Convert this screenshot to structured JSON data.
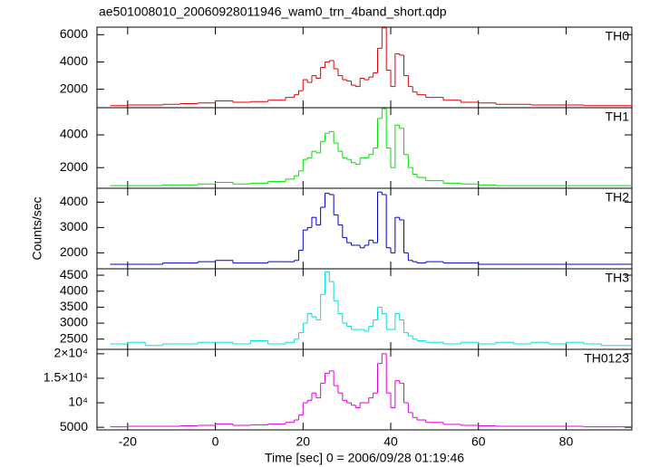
{
  "chart_data": [
    {
      "type": "line",
      "title": "ae501008010_20060928011946_wam0_trn_4band_short.qdp",
      "x": [
        -24,
        -20,
        -16,
        -12,
        -8,
        -4,
        0,
        4,
        8,
        12,
        16,
        18,
        19,
        20,
        21,
        22,
        23,
        24,
        25,
        26,
        27,
        28,
        29,
        30,
        31,
        32,
        33,
        34,
        35,
        36,
        37,
        38,
        39,
        40,
        41,
        42,
        43,
        44,
        45,
        46,
        48,
        52,
        56,
        60,
        64,
        68,
        72,
        76,
        80,
        84,
        88,
        92
      ],
      "series": [
        {
          "name": "TH0",
          "color": "#e00000",
          "values": [
            800,
            850,
            850,
            900,
            950,
            1000,
            1150,
            1050,
            1100,
            1200,
            1400,
            1600,
            1900,
            2700,
            2500,
            3000,
            2800,
            3600,
            4000,
            4100,
            3500,
            3000,
            2700,
            2600,
            2300,
            2200,
            2800,
            2700,
            2900,
            3200,
            5000,
            6500,
            3400,
            2200,
            4600,
            4500,
            3000,
            2200,
            1800,
            1600,
            1400,
            1200,
            1050,
            1000,
            900,
            900,
            850,
            850,
            850,
            800,
            800,
            800
          ]
        }
      ],
      "xlim": [
        -27,
        95
      ],
      "xticks": [
        -20,
        0,
        20,
        40,
        60,
        80
      ],
      "ylim": [
        650,
        6550
      ],
      "yticks": [
        2000,
        4000,
        6000
      ]
    },
    {
      "type": "line",
      "x": [
        -24,
        -20,
        -16,
        -12,
        -8,
        -4,
        0,
        4,
        8,
        12,
        16,
        18,
        19,
        20,
        21,
        22,
        23,
        24,
        25,
        26,
        27,
        28,
        29,
        30,
        31,
        32,
        33,
        34,
        35,
        36,
        37,
        38,
        39,
        40,
        41,
        42,
        43,
        44,
        45,
        46,
        48,
        52,
        56,
        60,
        64,
        68,
        72,
        76,
        80,
        84,
        88,
        92
      ],
      "series": [
        {
          "name": "TH1",
          "color": "#00e000",
          "values": [
            900,
            900,
            900,
            950,
            950,
            1000,
            1100,
            1000,
            1050,
            1150,
            1300,
            1500,
            1800,
            2500,
            2600,
            3000,
            2900,
            3600,
            4100,
            4200,
            3500,
            3000,
            2600,
            2500,
            2300,
            2200,
            2600,
            2600,
            2800,
            3200,
            5000,
            5600,
            3200,
            2000,
            4600,
            4400,
            2800,
            2000,
            1600,
            1400,
            1200,
            1050,
            1000,
            950,
            900,
            900,
            900,
            900,
            900,
            900,
            900,
            900
          ]
        }
      ],
      "xlim": [
        -27,
        95
      ],
      "xticks": [
        -20,
        0,
        20,
        40,
        60,
        80
      ],
      "ylim": [
        740,
        5660
      ],
      "yticks": [
        2000,
        4000
      ]
    },
    {
      "type": "line",
      "ylabel": "Counts/sec",
      "x": [
        -24,
        -20,
        -16,
        -12,
        -8,
        -4,
        0,
        4,
        8,
        12,
        16,
        18,
        19,
        20,
        21,
        22,
        23,
        24,
        25,
        26,
        27,
        28,
        29,
        30,
        31,
        32,
        33,
        34,
        35,
        36,
        37,
        38,
        39,
        40,
        41,
        42,
        43,
        44,
        45,
        46,
        48,
        52,
        56,
        60,
        64,
        68,
        72,
        76,
        80,
        84,
        88,
        92
      ],
      "series": [
        {
          "name": "TH2",
          "color": "#0000cc",
          "values": [
            1550,
            1550,
            1550,
            1600,
            1600,
            1650,
            1700,
            1600,
            1600,
            1650,
            1650,
            1700,
            2100,
            2900,
            3000,
            3400,
            3100,
            3800,
            4350,
            4300,
            3500,
            3100,
            2600,
            2400,
            2300,
            2300,
            2200,
            2300,
            2500,
            2400,
            4400,
            4300,
            2200,
            2000,
            3400,
            3300,
            2000,
            1700,
            1650,
            1600,
            1650,
            1600,
            1600,
            1550,
            1550,
            1550,
            1550,
            1550,
            1550,
            1550,
            1550,
            1550
          ]
        }
      ],
      "xlim": [
        -27,
        95
      ],
      "xticks": [
        -20,
        0,
        20,
        40,
        60,
        80
      ],
      "ylim": [
        1370,
        4550
      ],
      "yticks": [
        2000,
        3000,
        4000
      ]
    },
    {
      "type": "line",
      "x": [
        -24,
        -20,
        -16,
        -12,
        -8,
        -4,
        0,
        4,
        8,
        12,
        16,
        18,
        19,
        20,
        21,
        22,
        23,
        24,
        25,
        26,
        27,
        28,
        29,
        30,
        31,
        32,
        33,
        34,
        35,
        36,
        37,
        38,
        39,
        40,
        41,
        42,
        43,
        44,
        45,
        46,
        48,
        52,
        56,
        60,
        64,
        68,
        72,
        76,
        80,
        84,
        88,
        92
      ],
      "series": [
        {
          "name": "TH3",
          "color": "#00e0e0",
          "values": [
            2350,
            2400,
            2300,
            2350,
            2350,
            2400,
            2400,
            2350,
            2450,
            2350,
            2400,
            2500,
            2700,
            3000,
            3300,
            3200,
            3100,
            3900,
            4600,
            4300,
            3700,
            3300,
            3000,
            2900,
            2800,
            2800,
            2800,
            2750,
            2900,
            3100,
            3500,
            3300,
            2800,
            2800,
            3300,
            3100,
            2700,
            2600,
            2500,
            2450,
            2400,
            2350,
            2400,
            2350,
            2400,
            2350,
            2400,
            2350,
            2400,
            2350,
            2300,
            2300
          ]
        }
      ],
      "xlim": [
        -27,
        95
      ],
      "xticks": [
        -20,
        0,
        20,
        40,
        60,
        80
      ],
      "ylim": [
        2180,
        4700
      ],
      "yticks": [
        2500,
        3000,
        3500,
        4000,
        4500
      ]
    },
    {
      "type": "line",
      "xlabel": "Time [sec] 0 = 2006/09/28 01:19:46",
      "x": [
        -24,
        -20,
        -16,
        -12,
        -8,
        -4,
        0,
        4,
        8,
        12,
        16,
        18,
        19,
        20,
        21,
        22,
        23,
        24,
        25,
        26,
        27,
        28,
        29,
        30,
        31,
        32,
        33,
        34,
        35,
        36,
        37,
        38,
        39,
        40,
        41,
        42,
        43,
        44,
        45,
        46,
        48,
        52,
        56,
        60,
        64,
        68,
        72,
        76,
        80,
        84,
        88,
        92
      ],
      "series": [
        {
          "name": "TH0123",
          "color": "#e000e0",
          "values": [
            5100,
            5200,
            5200,
            5200,
            5300,
            5400,
            5700,
            5400,
            5500,
            5700,
            6000,
            6500,
            7500,
            10000,
            10500,
            12000,
            11000,
            14000,
            16000,
            16500,
            13500,
            12000,
            10500,
            10000,
            9500,
            9000,
            10000,
            10000,
            11000,
            12000,
            18000,
            20000,
            12000,
            9000,
            14500,
            14000,
            10000,
            8000,
            7000,
            6500,
            6000,
            5600,
            5400,
            5300,
            5200,
            5200,
            5200,
            5200,
            5200,
            5100,
            5100,
            5100
          ]
        }
      ],
      "xlim": [
        -27,
        95
      ],
      "xticks": [
        -20,
        0,
        20,
        40,
        60,
        80
      ],
      "ylim": [
        4470,
        20900
      ],
      "yticks": [
        5000,
        {
          "value": 10000,
          "label": "10⁴"
        },
        {
          "value": 15000,
          "label": "1.5×10⁴"
        },
        {
          "value": 20000,
          "label": "2×10⁴"
        }
      ]
    }
  ]
}
